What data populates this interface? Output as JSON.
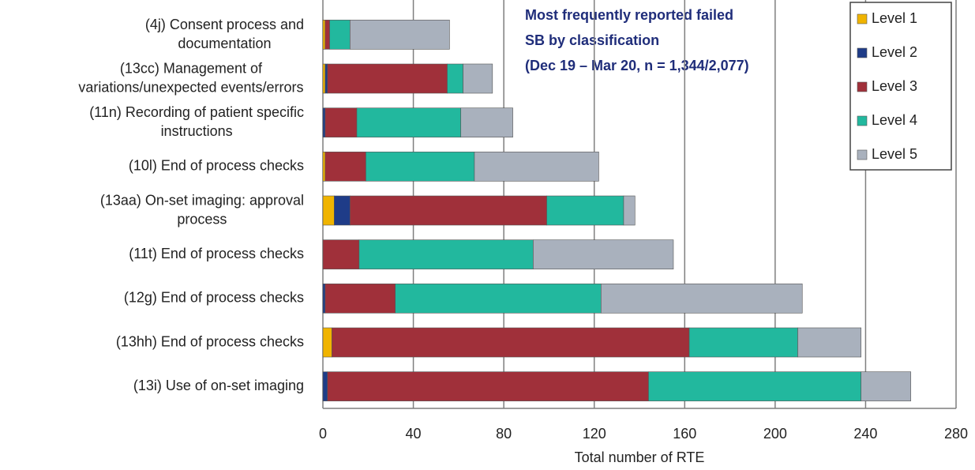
{
  "chart_data": {
    "type": "stacked_barh",
    "title": "Most frequently reported failed\nSB by classification\n(Dec 19 – Mar 20, n = 1,344/2,077)",
    "xlabel": "Total number of RTE",
    "categories": [
      "(4j) Consent process and\ndocumentation",
      "(13cc) Management of\nvariations/unexpected events/errors",
      "(11n) Recording of patient specific\ninstructions",
      "(10l) End of process checks",
      "(13aa) On-set imaging: approval\nprocess",
      "(11t) End of process checks",
      "(12g) End of process checks",
      "(13hh) End of process checks",
      "(13i) Use of on-set imaging"
    ],
    "series": [
      {
        "name": "Level 1",
        "color": "#f0b400",
        "values": [
          1,
          1,
          0,
          1,
          5,
          0,
          0,
          4,
          0
        ]
      },
      {
        "name": "Level 2",
        "color": "#1f3c88",
        "values": [
          0,
          1,
          1,
          0,
          7,
          0,
          1,
          0,
          2
        ]
      },
      {
        "name": "Level 3",
        "color": "#a0303a",
        "values": [
          2,
          53,
          14,
          18,
          87,
          16,
          31,
          158,
          142
        ]
      },
      {
        "name": "Level 4",
        "color": "#22b89e",
        "values": [
          9,
          7,
          46,
          48,
          34,
          77,
          91,
          48,
          94
        ]
      },
      {
        "name": "Level 5",
        "color": "#a9b1bd",
        "values": [
          44,
          13,
          23,
          55,
          5,
          62,
          89,
          28,
          22
        ]
      }
    ],
    "xlim": [
      0,
      280
    ],
    "xticks": [
      0,
      40,
      80,
      120,
      160,
      200,
      240,
      280
    ],
    "grid": true
  }
}
